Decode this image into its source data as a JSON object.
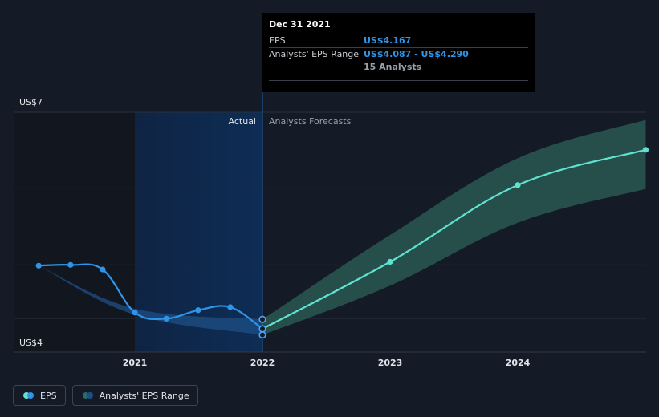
{
  "tooltip": {
    "date": "Dec 31 2021",
    "eps_label": "EPS",
    "eps_value": "US$4.167",
    "range_label": "Analysts' EPS Range",
    "range_value": "US$4.087 - US$4.290",
    "analysts": "15 Analysts"
  },
  "legend": {
    "eps_label": "EPS",
    "range_label": "Analysts' EPS Range"
  },
  "colors": {
    "background": "#151b26",
    "eps_line": "#2f95e8",
    "forecast_line": "#5fe3d0",
    "forecast_band": "#2a5c56",
    "actual_shade": "#0f2a4a"
  },
  "chart_data": {
    "type": "line",
    "y_label_top": "US$7",
    "y_label_bottom": "US$4",
    "ylim": [
      4,
      7
    ],
    "xlim": [
      "2020-03-31",
      "2024-12-31"
    ],
    "x_ticks": [
      "2021",
      "2022",
      "2023",
      "2024"
    ],
    "actual_label": "Actual",
    "forecast_label": "Analysts Forecasts",
    "grid": true,
    "legend_position": "bottom-left",
    "series": [
      {
        "name": "EPS",
        "points": [
          {
            "x": "2020-03-31",
            "y": 4.99
          },
          {
            "x": "2020-06-30",
            "y": 5.0
          },
          {
            "x": "2020-09-30",
            "y": 4.94
          },
          {
            "x": "2020-12-31",
            "y": 4.38
          },
          {
            "x": "2021-03-31",
            "y": 4.3
          },
          {
            "x": "2021-06-30",
            "y": 4.41
          },
          {
            "x": "2021-09-30",
            "y": 4.45
          },
          {
            "x": "2021-12-31",
            "y": 4.167
          }
        ]
      },
      {
        "name": "Analysts Forecasts",
        "points": [
          {
            "x": "2021-12-31",
            "y": 4.167
          },
          {
            "x": "2022-12-31",
            "y": 5.04
          },
          {
            "x": "2023-12-31",
            "y": 6.04
          },
          {
            "x": "2024-12-31",
            "y": 6.5
          }
        ]
      }
    ],
    "range": {
      "name": "Analysts' EPS Range",
      "points": [
        {
          "x": "2020-03-31",
          "low": 4.99,
          "high": 4.99
        },
        {
          "x": "2020-12-31",
          "low": 4.35,
          "high": 4.43
        },
        {
          "x": "2021-12-31",
          "low": 4.087,
          "high": 4.29
        },
        {
          "x": "2022-12-31",
          "low": 4.73,
          "high": 5.39
        },
        {
          "x": "2023-12-31",
          "low": 5.55,
          "high": 6.39
        },
        {
          "x": "2024-12-31",
          "low": 5.99,
          "high": 6.89
        }
      ]
    },
    "highlighted_points": [
      {
        "x": "2021-12-31",
        "y": 4.087
      },
      {
        "x": "2021-12-31",
        "y": 4.167
      },
      {
        "x": "2021-12-31",
        "y": 4.29
      }
    ]
  }
}
